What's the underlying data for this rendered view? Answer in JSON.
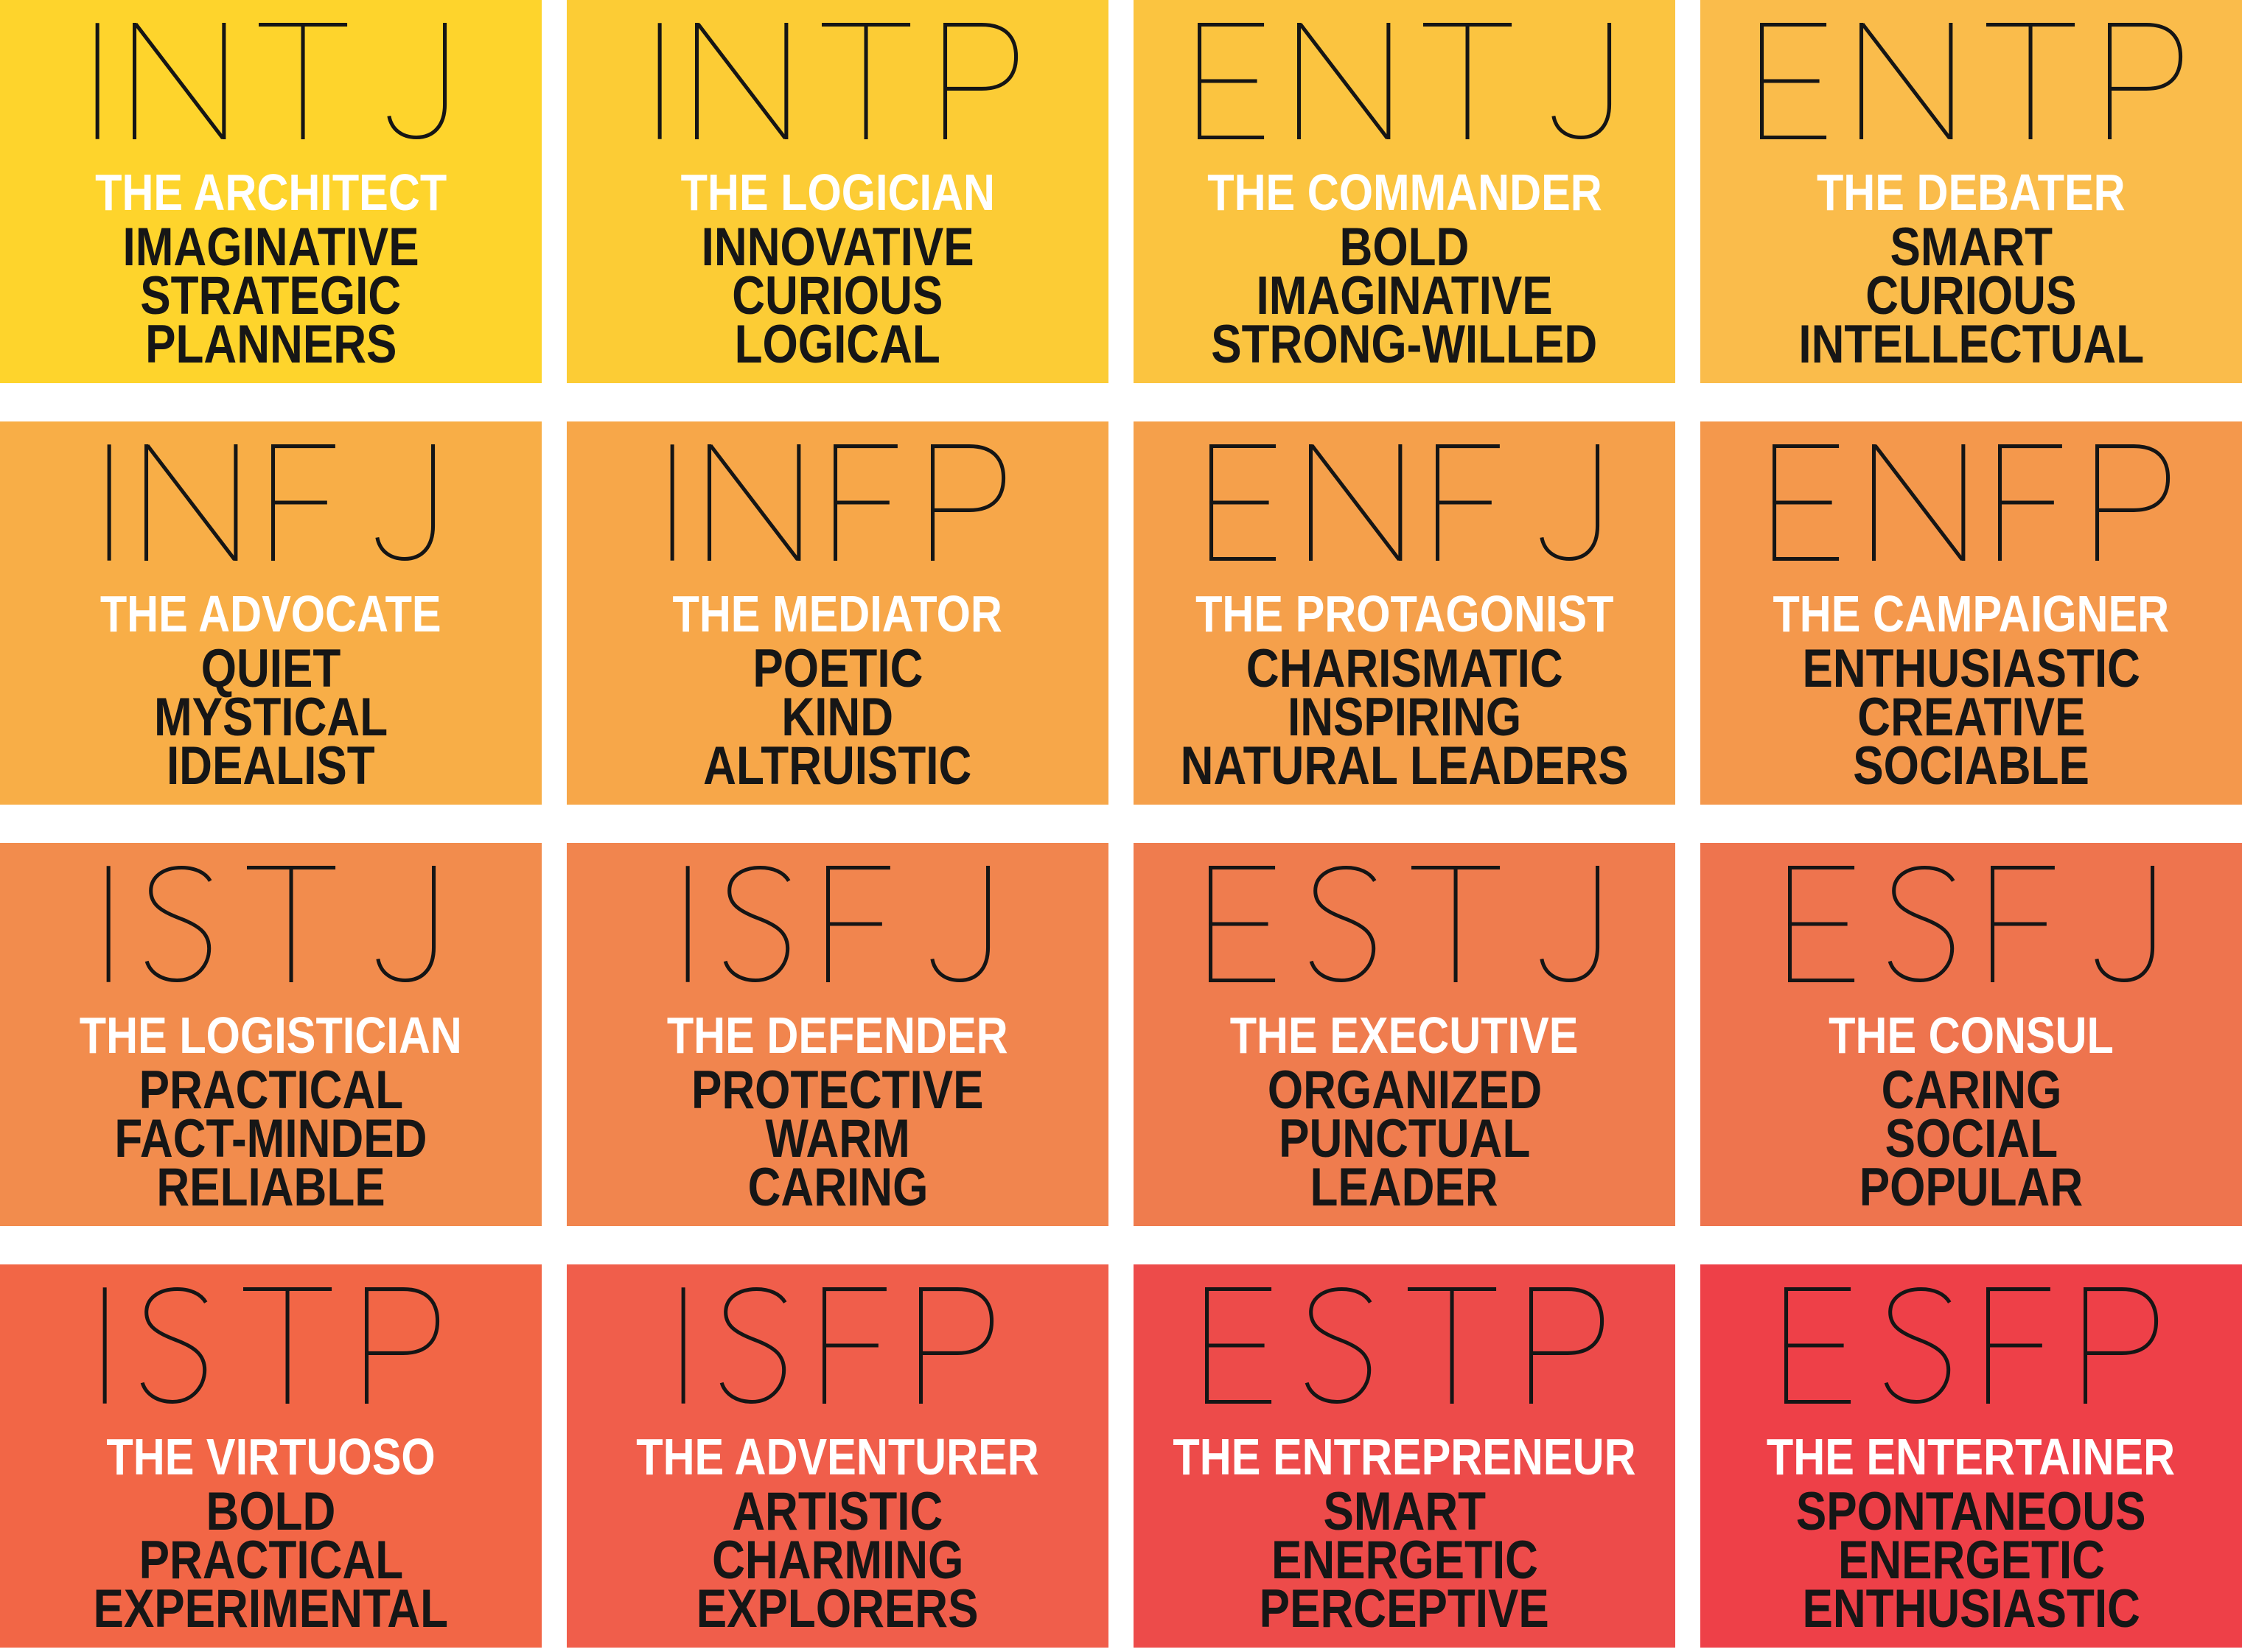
{
  "poster": {
    "name": "MBTI 16 personality types grid",
    "background": "#FFFFFF",
    "text_colors": {
      "code": "#151515",
      "title": "#FFFFFF",
      "traits": "#161616"
    }
  },
  "cells": [
    {
      "code": "INTJ",
      "title": "THE ARCHITECT",
      "traits": [
        "IMAGINATIVE",
        "STRATEGIC",
        "PLANNERS"
      ],
      "bg": "#FED42C"
    },
    {
      "code": "INTP",
      "title": "THE LOGICIAN",
      "traits": [
        "INNOVATIVE",
        "CURIOUS",
        "LOGICAL"
      ],
      "bg": "#FCCC35"
    },
    {
      "code": "ENTJ",
      "title": "THE COMMANDER",
      "traits": [
        "BOLD",
        "IMAGINATIVE",
        "STRONG-WILLED"
      ],
      "bg": "#FBC440"
    },
    {
      "code": "ENTP",
      "title": "THE DEBATER",
      "traits": [
        "SMART",
        "CURIOUS",
        "INTELLECTUAL"
      ],
      "bg": "#FABC4B"
    },
    {
      "code": "INFJ",
      "title": "THE ADVOCATE",
      "traits": [
        "QUIET",
        "MYSTICAL",
        "IDEALIST"
      ],
      "bg": "#F8AE47"
    },
    {
      "code": "INFP",
      "title": "THE MEDIATOR",
      "traits": [
        "POETIC",
        "KIND",
        "ALTRUISTIC"
      ],
      "bg": "#F7A749"
    },
    {
      "code": "ENFJ",
      "title": "THE PROTAGONIST",
      "traits": [
        "CHARISMATIC",
        "INSPIRING",
        "NATURAL LEADERS"
      ],
      "bg": "#F5A04B"
    },
    {
      "code": "ENFP",
      "title": "THE CAMPAIGNER",
      "traits": [
        "ENTHUSIASTIC",
        "CREATIVE",
        "SOCIABLE"
      ],
      "bg": "#F4984C"
    },
    {
      "code": "ISTJ",
      "title": "THE LOGISTICIAN",
      "traits": [
        "PRACTICAL",
        "FACT-MINDED",
        "RELIABLE"
      ],
      "bg": "#F28C4D"
    },
    {
      "code": "ISFJ",
      "title": "THE DEFENDER",
      "traits": [
        "PROTECTIVE",
        "WARM",
        "CARING"
      ],
      "bg": "#F1854E"
    },
    {
      "code": "ESTJ",
      "title": "THE EXECUTIVE",
      "traits": [
        "ORGANIZED",
        "PUNCTUAL",
        "LEADER"
      ],
      "bg": "#EF7C4E"
    },
    {
      "code": "ESFJ",
      "title": "THE CONSUL",
      "traits": [
        "CARING",
        "SOCIAL",
        "POPULAR"
      ],
      "bg": "#EE744E"
    },
    {
      "code": "ISTP",
      "title": "THE VIRTUOSO",
      "traits": [
        "BOLD",
        "PRACTICAL",
        "EXPERIMENTAL"
      ],
      "bg": "#F26646"
    },
    {
      "code": "ISFP",
      "title": "THE ADVENTURER",
      "traits": [
        "ARTISTIC",
        "CHARMING",
        "EXPLORERS"
      ],
      "bg": "#F05E4B"
    },
    {
      "code": "ESTP",
      "title": "THE ENTREPRENEUR",
      "traits": [
        "SMART",
        "ENERGETIC",
        "PERCEPTIVE"
      ],
      "bg": "#ED4B4A"
    },
    {
      "code": "ESFP",
      "title": "THE ENTERTAINER",
      "traits": [
        "SPONTANEOUS",
        "ENERGETIC",
        "ENTHUSIASTIC"
      ],
      "bg": "#EE4048"
    }
  ]
}
